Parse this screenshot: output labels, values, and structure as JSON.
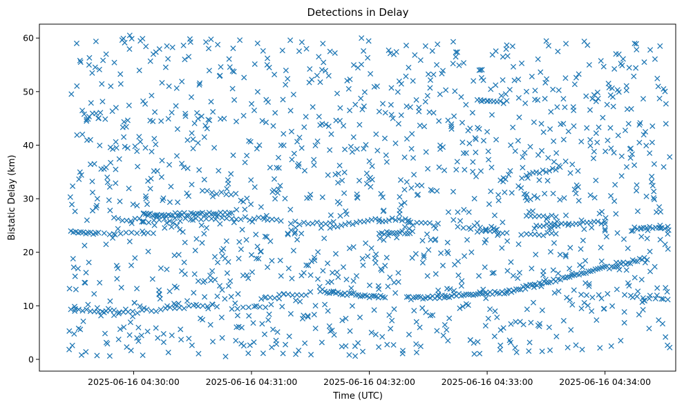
{
  "chart_data": {
    "type": "scatter",
    "title": "Detections in Delay",
    "xlabel": "Time (UTC)",
    "ylabel": "Bistatic Delay (km)",
    "marker": "x",
    "color": "#1f77b4",
    "grid": false,
    "xlim": [
      "2025-06-16 04:29:12",
      "2025-06-16 04:34:36"
    ],
    "ylim": [
      -2.2,
      62.6
    ],
    "x_ticks": [
      "2025-06-16 04:30:00",
      "2025-06-16 04:31:00",
      "2025-06-16 04:32:00",
      "2025-06-16 04:33:00",
      "2025-06-16 04:34:00"
    ],
    "y_ticks": [
      0,
      10,
      20,
      30,
      40,
      50,
      60
    ],
    "start": "2025-06-16 04:29:27",
    "end": "2025-06-16 04:34:32",
    "tracks": [
      {
        "from": [
          "2025-06-16 04:29:28",
          9.2
        ],
        "to": [
          "2025-06-16 04:29:50",
          9.0
        ],
        "n": 12
      },
      {
        "from": [
          "2025-06-16 04:29:50",
          8.5
        ],
        "to": [
          "2025-06-16 04:30:40",
          10.2
        ],
        "n": 22
      },
      {
        "from": [
          "2025-06-16 04:30:50",
          9.5
        ],
        "to": [
          "2025-06-16 04:31:10",
          10.0
        ],
        "n": 8
      },
      {
        "from": [
          "2025-06-16 04:31:05",
          11.5
        ],
        "to": [
          "2025-06-16 04:31:30",
          12.3
        ],
        "n": 12
      },
      {
        "from": [
          "2025-06-16 04:31:35",
          12.8
        ],
        "to": [
          "2025-06-16 04:32:08",
          11.5
        ],
        "n": 30
      },
      {
        "from": [
          "2025-06-16 04:32:20",
          11.4
        ],
        "to": [
          "2025-06-16 04:33:10",
          12.5
        ],
        "n": 42
      },
      {
        "from": [
          "2025-06-16 04:33:10",
          12.6
        ],
        "to": [
          "2025-06-16 04:34:20",
          18.8
        ],
        "n": 60
      },
      {
        "from": [
          "2025-06-16 04:34:10",
          11.8
        ],
        "to": [
          "2025-06-16 04:34:32",
          11.0
        ],
        "n": 8
      },
      {
        "from": [
          "2025-06-16 04:29:28",
          23.8
        ],
        "to": [
          "2025-06-16 04:29:42",
          23.5
        ],
        "n": 12
      },
      {
        "from": [
          "2025-06-16 04:29:45",
          23.4
        ],
        "to": [
          "2025-06-16 04:30:10",
          23.8
        ],
        "n": 10
      },
      {
        "from": [
          "2025-06-16 04:29:50",
          26.2
        ],
        "to": [
          "2025-06-16 04:30:05",
          26.0
        ],
        "n": 8
      },
      {
        "from": [
          "2025-06-16 04:30:05",
          27.0
        ],
        "to": [
          "2025-06-16 04:30:50",
          27.2
        ],
        "n": 40
      },
      {
        "from": [
          "2025-06-16 04:30:05",
          25.8
        ],
        "to": [
          "2025-06-16 04:30:45",
          26.5
        ],
        "n": 16
      },
      {
        "from": [
          "2025-06-16 04:30:35",
          31.2
        ],
        "to": [
          "2025-06-16 04:30:52",
          31.0
        ],
        "n": 8
      },
      {
        "from": [
          "2025-06-16 04:30:50",
          26.5
        ],
        "to": [
          "2025-06-16 04:31:15",
          26.0
        ],
        "n": 12
      },
      {
        "from": [
          "2025-06-16 04:31:20",
          25.5
        ],
        "to": [
          "2025-06-16 04:31:40",
          25.2
        ],
        "n": 10
      },
      {
        "from": [
          "2025-06-16 04:31:40",
          24.8
        ],
        "to": [
          "2025-06-16 04:32:05",
          26.2
        ],
        "n": 14
      },
      {
        "from": [
          "2025-06-16 04:32:05",
          26.0
        ],
        "to": [
          "2025-06-16 04:32:20",
          26.2
        ],
        "n": 10
      },
      {
        "from": [
          "2025-06-16 04:32:05",
          23.6
        ],
        "to": [
          "2025-06-16 04:32:22",
          23.8
        ],
        "n": 14
      },
      {
        "from": [
          "2025-06-16 04:32:20",
          25.3
        ],
        "to": [
          "2025-06-16 04:32:35",
          25.2
        ],
        "n": 8
      },
      {
        "from": [
          "2025-06-16 04:32:45",
          24.8
        ],
        "to": [
          "2025-06-16 04:33:05",
          24.5
        ],
        "n": 8
      },
      {
        "from": [
          "2025-06-16 04:32:55",
          48.5
        ],
        "to": [
          "2025-06-16 04:33:10",
          48.0
        ],
        "n": 10
      },
      {
        "from": [
          "2025-06-16 04:32:55",
          23.8
        ],
        "to": [
          "2025-06-16 04:33:10",
          23.5
        ],
        "n": 8
      },
      {
        "from": [
          "2025-06-16 04:33:20",
          34.5
        ],
        "to": [
          "2025-06-16 04:33:35",
          35.5
        ],
        "n": 10
      },
      {
        "from": [
          "2025-06-16 04:33:20",
          27.0
        ],
        "to": [
          "2025-06-16 04:33:35",
          26.5
        ],
        "n": 8
      },
      {
        "from": [
          "2025-06-16 04:33:25",
          25.0
        ],
        "to": [
          "2025-06-16 04:34:00",
          25.5
        ],
        "n": 20
      },
      {
        "from": [
          "2025-06-16 04:33:20",
          23.2
        ],
        "to": [
          "2025-06-16 04:33:35",
          23.5
        ],
        "n": 8
      },
      {
        "from": [
          "2025-06-16 04:34:15",
          24.5
        ],
        "to": [
          "2025-06-16 04:34:32",
          24.6
        ],
        "n": 12
      }
    ],
    "scattered": [
      [
        "04:29:31",
        59.0
      ],
      [
        "04:29:33",
        55.5
      ],
      [
        "04:29:36",
        44.5
      ],
      [
        "04:29:38",
        41.0
      ],
      [
        "04:29:40",
        36.5
      ],
      [
        "04:29:42",
        45.0
      ],
      [
        "04:29:46",
        57.0
      ],
      [
        "04:29:48",
        27.8
      ],
      [
        "04:29:51",
        47.0
      ],
      [
        "04:29:53",
        29.5
      ],
      [
        "04:29:55",
        6.0
      ],
      [
        "04:29:58",
        60.5
      ],
      [
        "04:30:02",
        36.0
      ],
      [
        "04:30:06",
        39.5
      ],
      [
        "04:30:10",
        57.0
      ],
      [
        "04:30:14",
        44.5
      ],
      [
        "04:30:18",
        51.0
      ],
      [
        "04:30:22",
        38.0
      ],
      [
        "04:30:26",
        56.0
      ],
      [
        "04:30:28",
        30.5
      ],
      [
        "04:30:32",
        22.5
      ],
      [
        "04:30:36",
        41.5
      ],
      [
        "04:30:40",
        16.5
      ],
      [
        "04:30:44",
        53.0
      ],
      [
        "04:30:48",
        33.5
      ],
      [
        "04:30:52",
        3.5
      ],
      [
        "04:30:56",
        45.5
      ],
      [
        "04:31:00",
        19.5
      ],
      [
        "04:31:04",
        40.0
      ],
      [
        "04:31:08",
        55.0
      ],
      [
        "04:31:12",
        30.0
      ],
      [
        "04:31:16",
        48.5
      ],
      [
        "04:31:20",
        8.5
      ],
      [
        "04:31:24",
        36.0
      ],
      [
        "04:31:28",
        58.0
      ],
      [
        "04:31:32",
        19.0
      ],
      [
        "04:31:36",
        44.0
      ],
      [
        "04:31:40",
        57.5
      ],
      [
        "04:31:44",
        33.0
      ],
      [
        "04:31:48",
        2.5
      ],
      [
        "04:31:52",
        41.5
      ],
      [
        "04:31:56",
        60.0
      ],
      [
        "04:32:00",
        37.0
      ],
      [
        "04:32:04",
        51.0
      ],
      [
        "04:32:08",
        17.5
      ],
      [
        "04:32:12",
        45.0
      ],
      [
        "04:32:16",
        33.5
      ],
      [
        "04:32:20",
        54.5
      ],
      [
        "04:32:24",
        7.0
      ],
      [
        "04:32:28",
        43.5
      ],
      [
        "04:32:32",
        31.5
      ],
      [
        "04:32:36",
        49.5
      ],
      [
        "04:32:40",
        3.5
      ],
      [
        "04:32:44",
        56.5
      ],
      [
        "04:32:48",
        38.5
      ],
      [
        "04:32:52",
        20.0
      ],
      [
        "04:32:56",
        54.0
      ],
      [
        "04:33:00",
        42.5
      ],
      [
        "04:33:04",
        9.0
      ],
      [
        "04:33:08",
        56.5
      ],
      [
        "04:33:12",
        40.0
      ],
      [
        "04:33:16",
        21.5
      ],
      [
        "04:33:20",
        50.0
      ],
      [
        "04:33:24",
        30.5
      ],
      [
        "04:33:28",
        1.5
      ],
      [
        "04:33:32",
        43.0
      ],
      [
        "04:33:36",
        57.5
      ],
      [
        "04:33:40",
        19.5
      ],
      [
        "04:33:44",
        46.5
      ],
      [
        "04:33:48",
        9.5
      ],
      [
        "04:33:52",
        55.0
      ],
      [
        "04:33:56",
        40.5
      ],
      [
        "04:34:00",
        24.0
      ],
      [
        "04:34:04",
        49.0
      ],
      [
        "04:34:08",
        3.5
      ],
      [
        "04:34:12",
        44.0
      ],
      [
        "04:34:16",
        31.5
      ],
      [
        "04:34:20",
        55.5
      ],
      [
        "04:34:24",
        40.5
      ],
      [
        "04:34:28",
        58.5
      ],
      [
        "04:34:31",
        44.0
      ]
    ],
    "noise": {
      "per_second": 4,
      "seed": 1234
    }
  }
}
